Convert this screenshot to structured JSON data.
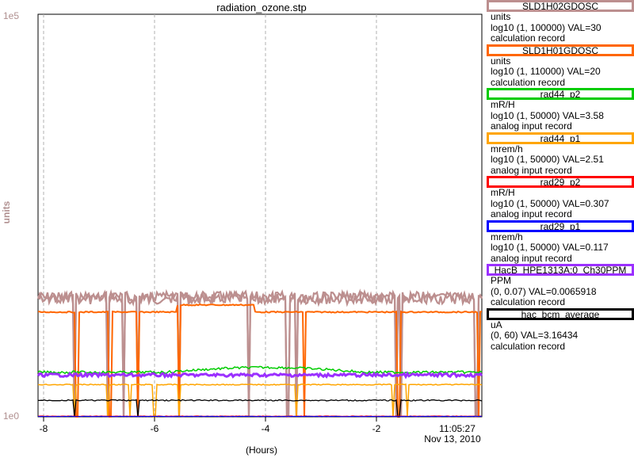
{
  "chart_data": {
    "type": "line",
    "title": "radiation_ozone.stp",
    "ylabel": "units",
    "xlabel": "(Hours)",
    "y_scale": "log",
    "ylim": [
      1,
      100000
    ],
    "y_ticks": [
      "1e5",
      "1e0"
    ],
    "xlim": [
      -8.1,
      -0.1
    ],
    "x_ticks": [
      {
        "value": -8,
        "label": "-8"
      },
      {
        "value": -6,
        "label": "-6"
      },
      {
        "value": -4,
        "label": "-4"
      },
      {
        "value": -2,
        "label": "-2"
      }
    ],
    "end_time": "11:05:27",
    "end_date": "Nov 13, 2010",
    "grid": true,
    "series": [
      {
        "name": "SLD1H02GDOSC",
        "color": "#bc8f8f",
        "approx_level": 30,
        "dropouts_hours": [
          -7.45,
          -6.85,
          -6.55,
          -6.3,
          -5.55,
          -4.3,
          -3.6,
          -3.45,
          -1.65,
          -1.55,
          -0.2
        ]
      },
      {
        "name": "SLD1H01GDOSC",
        "color": "#ff6600",
        "approx_level": 20,
        "dropouts_hours": [
          -7.4,
          -6.8,
          -6.3,
          -5.55,
          -3.3,
          -1.6,
          -0.15
        ]
      },
      {
        "name": "rad44_p2",
        "color": "#00cc00",
        "approx_level": 3.58
      },
      {
        "name": "rad44_p1",
        "color": "#ffa500",
        "approx_level": 2.51
      },
      {
        "name": "rad29_p2",
        "color": "#ff0000",
        "approx_level": 0.307
      },
      {
        "name": "rad29_p1",
        "color": "#0000ff",
        "approx_level": 0.117
      },
      {
        "name": "HacB_HPE1313A:0_Ch30PPM",
        "color": "#9b30ff",
        "approx_level": 0.0065918
      },
      {
        "name": "hac_bcm_average",
        "color": "#000000",
        "approx_level": 3.16434
      }
    ]
  },
  "legend": [
    {
      "name": "SLD1H02GDOSC",
      "color": "#bc8f8f",
      "units": "units",
      "range": "log10 (1, 100000) VAL=30",
      "record": "calculation record"
    },
    {
      "name": "SLD1H01GDOSC",
      "color": "#ff6600",
      "units": "units",
      "range": "log10 (1, 110000) VAL=20",
      "record": "calculation record"
    },
    {
      "name": "rad44_p2",
      "color": "#00cc00",
      "units": "mR/H",
      "range": "log10 (1, 50000) VAL=3.58",
      "record": "analog input record"
    },
    {
      "name": "rad44_p1",
      "color": "#ffa500",
      "units": "mrem/h",
      "range": "log10 (1, 50000) VAL=2.51",
      "record": "analog input record"
    },
    {
      "name": "rad29_p2",
      "color": "#ff0000",
      "units": "mR/H",
      "range": "log10 (1, 50000) VAL=0.307",
      "record": "analog input record"
    },
    {
      "name": "rad29_p1",
      "color": "#0000ff",
      "units": "mrem/h",
      "range": "log10 (1, 50000) VAL=0.117",
      "record": "analog input record"
    },
    {
      "name": "HacB_HPE1313A:0_Ch30PPM",
      "color": "#9b30ff",
      "units": "PPM",
      "range": "(0, 0.07) VAL=0.0065918",
      "record": "calculation record"
    },
    {
      "name": "hac_bcm_average",
      "color": "#000000",
      "units": "uA",
      "range": "(0, 60) VAL=3.16434",
      "record": "calculation record"
    }
  ]
}
